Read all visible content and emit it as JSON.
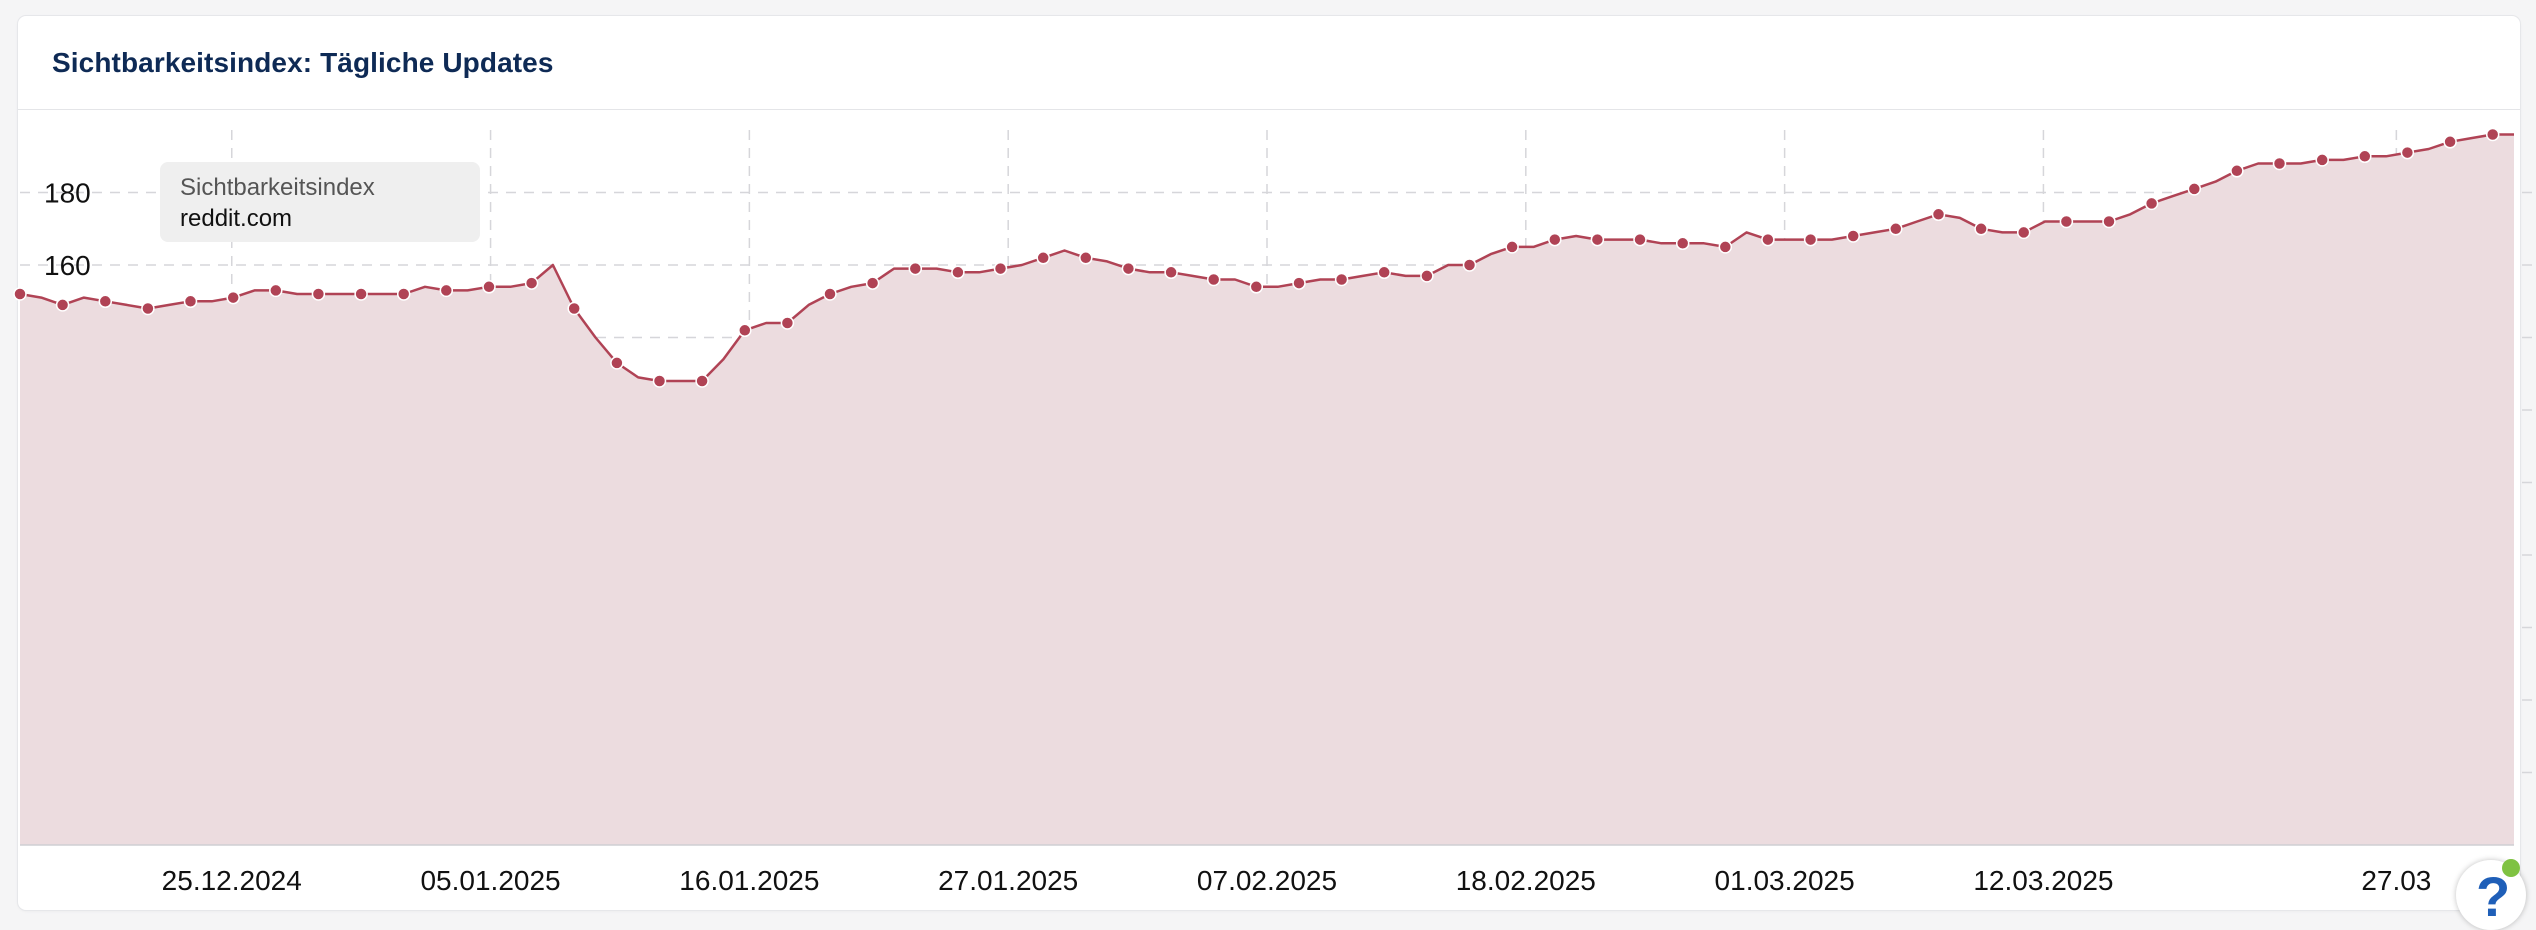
{
  "card": {
    "title": "Sichtbarkeitsindex: Tägliche Updates"
  },
  "legend": {
    "title": "Sichtbarkeitsindex",
    "domain": "reddit.com"
  },
  "colors": {
    "line": "#b04355",
    "fill": "#ecdcdf",
    "grid": "#d6d6da",
    "title": "#0e2a55",
    "help": "#1f5fb8",
    "status": "#7fc242"
  },
  "help": {
    "icon": "question-mark-icon",
    "label": "?"
  },
  "chart_data": {
    "type": "area",
    "title": "Sichtbarkeitsindex: Tägliche Updates",
    "xlabel": "",
    "ylabel": "",
    "series": [
      {
        "name": "reddit.com",
        "values": [
          152,
          151,
          149,
          151,
          150,
          149,
          148,
          149,
          150,
          150,
          151,
          153,
          153,
          152,
          152,
          152,
          152,
          152,
          152,
          154,
          153,
          153,
          154,
          154,
          155,
          160,
          148,
          140,
          133,
          129,
          128,
          128,
          128,
          134,
          142,
          144,
          144,
          149,
          152,
          154,
          155,
          159,
          159,
          159,
          158,
          158,
          159,
          160,
          162,
          164,
          162,
          161,
          159,
          158,
          158,
          157,
          156,
          156,
          154,
          154,
          155,
          156,
          156,
          157,
          158,
          157,
          157,
          160,
          160,
          163,
          165,
          165,
          167,
          168,
          167,
          167,
          167,
          166,
          166,
          166,
          165,
          169,
          167,
          167,
          167,
          167,
          168,
          169,
          170,
          172,
          174,
          173,
          170,
          169,
          169,
          172,
          172,
          172,
          172,
          174,
          177,
          179,
          181,
          183,
          186,
          188,
          188,
          188,
          189,
          189,
          190,
          190,
          191,
          192,
          194,
          195,
          196,
          196
        ]
      }
    ],
    "x_start": "2024-12-16",
    "x_end": "2025-04-01",
    "x_ticks": [
      "25.12.2024",
      "05.01.2025",
      "16.01.2025",
      "27.01.2025",
      "07.02.2025",
      "18.02.2025",
      "01.03.2025",
      "12.03.2025",
      "27.03"
    ],
    "ylim": [
      0,
      195
    ],
    "y_ticks": [
      20,
      40,
      60,
      80,
      100,
      120,
      140,
      160,
      180
    ],
    "grid": true,
    "legend_position": "top-left"
  }
}
